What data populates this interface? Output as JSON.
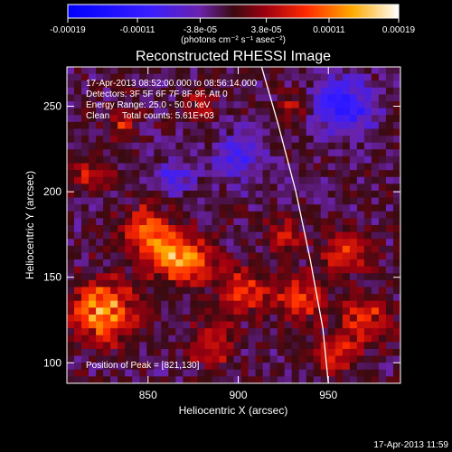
{
  "chart_data": {
    "type": "heatmap",
    "title": "Reconstructed RHESSI Image",
    "xlabel": "Heliocentric X (arcsec)",
    "ylabel": "Heliocentric Y (arcsec)",
    "xlim": [
      805,
      990
    ],
    "ylim": [
      88,
      273
    ],
    "x_ticks": [
      850,
      900,
      950
    ],
    "y_ticks": [
      100,
      150,
      200,
      250
    ],
    "colorbar": {
      "units": "(photons cm⁻² s⁻¹ asec⁻²)",
      "range": [
        -0.00019,
        0.00019
      ],
      "tick_values": [
        -0.00019,
        -0.00011,
        -3.8e-05,
        3.8e-05,
        0.00011,
        0.00019
      ],
      "tick_labels": [
        "-0.00019",
        "-0.00011",
        "-3.8e-05",
        "3.8e-05",
        "0.00011",
        "0.00019"
      ]
    },
    "annotations": [
      "17-Apr-2013 08:52:00.000 to 08:56:14.000",
      "Detectors: 3F 5F 6F 7F 8F 9F, Att 0",
      "Energy Range: 25.0 - 50.0 keV",
      "Clean     Total counts: 5.61E+03"
    ],
    "peak_label": "Position of Peak = [821,130]",
    "peak_position": [
      821,
      130
    ],
    "limb_curve": {
      "x": [
        913,
        922,
        932,
        940,
        947,
        950
      ],
      "y": [
        273,
        240,
        200,
        160,
        120,
        88
      ]
    },
    "hot_regions": [
      {
        "x": 825,
        "y": 130,
        "sigma": 12,
        "amp": 1.0
      },
      {
        "x": 862,
        "y": 163,
        "sigma": 10,
        "amp": 0.85
      },
      {
        "x": 848,
        "y": 178,
        "sigma": 9,
        "amp": 0.7
      },
      {
        "x": 878,
        "y": 158,
        "sigma": 8,
        "amp": 0.6
      },
      {
        "x": 903,
        "y": 142,
        "sigma": 9,
        "amp": 0.65
      },
      {
        "x": 935,
        "y": 138,
        "sigma": 9,
        "amp": 0.7
      },
      {
        "x": 960,
        "y": 165,
        "sigma": 9,
        "amp": 0.6
      },
      {
        "x": 970,
        "y": 125,
        "sigma": 10,
        "amp": 0.6
      },
      {
        "x": 925,
        "y": 175,
        "sigma": 7,
        "amp": 0.5
      },
      {
        "x": 955,
        "y": 105,
        "sigma": 8,
        "amp": 0.55
      },
      {
        "x": 885,
        "y": 110,
        "sigma": 9,
        "amp": 0.5
      },
      {
        "x": 818,
        "y": 210,
        "sigma": 7,
        "amp": 0.5
      },
      {
        "x": 835,
        "y": 240,
        "sigma": 6,
        "amp": 0.45
      },
      {
        "x": 880,
        "y": 250,
        "sigma": 6,
        "amp": 0.4
      },
      {
        "x": 930,
        "y": 250,
        "sigma": 6,
        "amp": 0.4
      }
    ],
    "cold_regions": [
      {
        "x": 958,
        "y": 250,
        "sigma": 12,
        "amp": 0.55
      },
      {
        "x": 900,
        "y": 220,
        "sigma": 10,
        "amp": 0.35
      },
      {
        "x": 865,
        "y": 210,
        "sigma": 8,
        "amp": 0.3
      }
    ]
  },
  "footer": {
    "timestamp": "17-Apr-2013 11:59"
  }
}
